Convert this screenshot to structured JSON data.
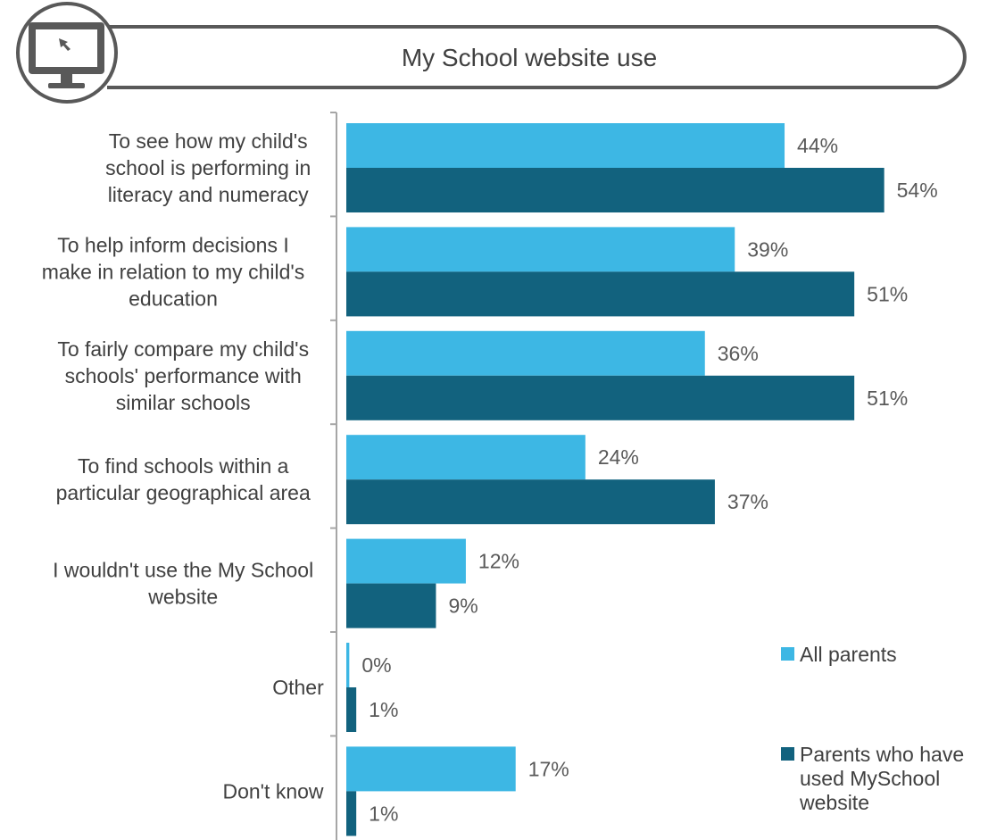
{
  "header": {
    "title": "My School website use",
    "icon": "computer-monitor-icon"
  },
  "chart_data": {
    "type": "bar",
    "orientation": "horizontal",
    "title": "My School website use",
    "xlabel": "",
    "ylabel": "",
    "xlim": [
      0,
      60
    ],
    "grid": false,
    "legend_position": "bottom-right",
    "categories": [
      [
        "To see how my child's",
        "school is performing in",
        "literacy and numeracy"
      ],
      [
        "To help inform decisions I",
        "make in relation to my child's",
        "education"
      ],
      [
        "To fairly compare my child's",
        "schools' performance with",
        "similar schools"
      ],
      [
        "To find schools within a",
        "particular geographical area"
      ],
      [
        "I wouldn't use the My School",
        "website"
      ],
      [
        "Other"
      ],
      [
        "Don't know"
      ]
    ],
    "series": [
      {
        "name": "All parents",
        "color": "#3db7e4",
        "values": [
          44,
          39,
          36,
          24,
          12,
          0.3,
          17
        ],
        "labels": [
          "44%",
          "39%",
          "36%",
          "24%",
          "12%",
          "0%",
          "17%"
        ]
      },
      {
        "name": "Parents who have used MySchool website",
        "legend_lines": [
          "Parents who have",
          "used MySchool",
          "website"
        ],
        "color": "#12627e",
        "values": [
          54,
          51,
          51,
          37,
          9,
          1,
          1
        ],
        "labels": [
          "54%",
          "51%",
          "51%",
          "37%",
          "9%",
          "1%",
          "1%"
        ]
      }
    ]
  },
  "colors": {
    "frame": "#595959",
    "axis": "#a6a6a6"
  }
}
